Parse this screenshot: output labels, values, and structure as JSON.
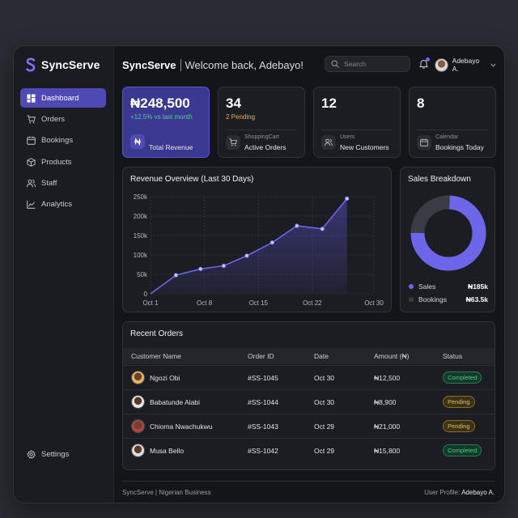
{
  "app": {
    "name": "SyncServe"
  },
  "sidebar": {
    "items": [
      {
        "label": "Dashboard",
        "icon": "dashboard-icon"
      },
      {
        "label": "Orders",
        "icon": "cart-icon"
      },
      {
        "label": "Bookings",
        "icon": "calendar-icon"
      },
      {
        "label": "Products",
        "icon": "box-icon"
      },
      {
        "label": "Staff",
        "icon": "users-icon"
      },
      {
        "label": "Analytics",
        "icon": "chart-icon"
      }
    ],
    "settings_label": "Settings"
  },
  "header": {
    "brand": "SyncServe",
    "welcome": "Welcome back, Adebayo!",
    "search_placeholder": "Search",
    "user_name": "Adebayo A."
  },
  "stats": [
    {
      "value": "₦248,500",
      "sub": "+12.5% vs last month",
      "icon": "naira-icon",
      "caption": "",
      "label": "Total Revenue"
    },
    {
      "value": "34",
      "sub": "2 Pending",
      "icon": "cart-icon",
      "caption": "ShoppingCart",
      "label": "Active Orders"
    },
    {
      "value": "12",
      "sub": "",
      "icon": "users-icon",
      "caption": "Users",
      "label": "New Customers"
    },
    {
      "value": "8",
      "sub": "",
      "icon": "calendar-icon",
      "caption": "Calendar",
      "label": "Bookings Today"
    }
  ],
  "revenue": {
    "title": "Revenue Overview (Last 30 Days)"
  },
  "chart_data": [
    {
      "type": "area",
      "title": "Revenue Overview (Last 30 Days)",
      "x_ticks": [
        "Oct 1",
        "Oct 8",
        "Oct 15",
        "Oct 22",
        "Oct 30"
      ],
      "y_ticks": [
        "0",
        "50k",
        "100k",
        "150k",
        "200k",
        "250k"
      ],
      "ylim": [
        0,
        250000
      ],
      "grid": true,
      "series": [
        {
          "values": [
            {
              "x": 1,
              "y": 0
            },
            {
              "x": 4.3,
              "y": 48000
            },
            {
              "x": 7.5,
              "y": 64000
            },
            {
              "x": 10.5,
              "y": 72000
            },
            {
              "x": 13.5,
              "y": 98000
            },
            {
              "x": 16.8,
              "y": 132000
            },
            {
              "x": 20,
              "y": 175000
            },
            {
              "x": 23.3,
              "y": 167000
            },
            {
              "x": 26.5,
              "y": 245000
            }
          ]
        }
      ]
    },
    {
      "type": "pie",
      "title": "Sales Breakdown",
      "series": [
        {
          "name": "Sales",
          "value": 185000,
          "display": "₦185k",
          "color": "#6e66e8"
        },
        {
          "name": "Bookings",
          "value": 63500,
          "display": "₦63.5k",
          "color": "#3a3c45"
        }
      ]
    }
  ],
  "breakdown": {
    "title": "Sales Breakdown"
  },
  "orders": {
    "title": "Recent Orders",
    "columns": [
      "Customer Name",
      "Order ID",
      "Date",
      "Amount (₦)",
      "Status"
    ],
    "rows": [
      {
        "name": "Ngozi Obi",
        "id": "#SS-1045",
        "date": "Oct 30",
        "amount": "₦12,500",
        "status": "Completed"
      },
      {
        "name": "Babatunde Alabi",
        "id": "#SS-1044",
        "date": "Oct 30",
        "amount": "₦8,900",
        "status": "Pending"
      },
      {
        "name": "Chioma Nwachukwu",
        "id": "#SS-1043",
        "date": "Oct 29",
        "amount": "₦21,000",
        "status": "Pending"
      },
      {
        "name": "Musa Bello",
        "id": "#SS-1042",
        "date": "Oct 29",
        "amount": "₦15,800",
        "status": "Completed"
      }
    ]
  },
  "footer": {
    "left": "SyncServe | Nigerian Business",
    "right_label": "User Profile:",
    "right_value": "Adebayo A."
  },
  "colors": {
    "accent": "#5b55d6",
    "completed": "#44d08c",
    "pending": "#e8c04b"
  }
}
